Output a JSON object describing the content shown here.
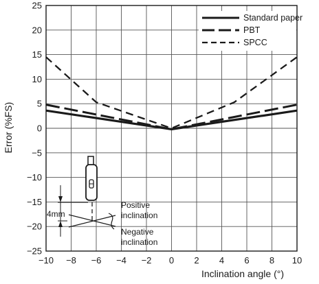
{
  "chart_data": {
    "type": "line",
    "xlabel": "Inclination angle (°)",
    "ylabel": "Error (%FS)",
    "xlim": [
      -10,
      10
    ],
    "ylim": [
      -25,
      25
    ],
    "x_ticks": [
      -10,
      -8,
      -6,
      -4,
      -2,
      0,
      2,
      4,
      6,
      8,
      10
    ],
    "y_ticks": [
      25,
      20,
      15,
      10,
      5,
      0,
      -5,
      -10,
      -15,
      -20,
      -25
    ],
    "x_tick_labels": [
      "−10",
      "−8",
      "−6",
      "−4",
      "−2",
      "0",
      "2",
      "4",
      "6",
      "8",
      "10"
    ],
    "y_tick_labels": [
      "25",
      "20",
      "15",
      "10",
      "5",
      "0",
      "−5",
      "−10",
      "−15",
      "−20",
      "−25"
    ],
    "grid": true,
    "legend_position": "top-right",
    "series": [
      {
        "name": "Standard paper",
        "style": "solid",
        "x": [
          -10,
          0,
          10
        ],
        "y": [
          3.6,
          -0.2,
          3.6
        ]
      },
      {
        "name": "PBT",
        "style": "long-dash",
        "x": [
          -10,
          0,
          10
        ],
        "y": [
          4.8,
          -0.2,
          4.8
        ]
      },
      {
        "name": "SPCC",
        "style": "dashed",
        "x": [
          -10,
          -6,
          0,
          5,
          10
        ],
        "y": [
          14.5,
          5.3,
          0,
          5.3,
          14.5
        ]
      }
    ],
    "annotations": {
      "dimension": "4mm",
      "positive": [
        "Positive",
        "inclination"
      ],
      "negative": [
        "Negative",
        "inclination"
      ]
    }
  }
}
